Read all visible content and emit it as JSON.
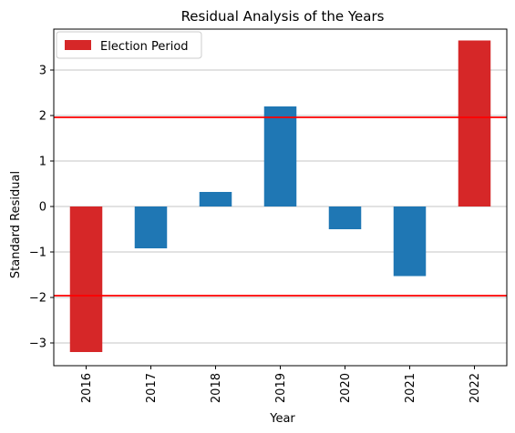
{
  "chart_data": {
    "type": "bar",
    "title": "Residual Analysis of the Years",
    "xlabel": "Year",
    "ylabel": "Standard Residual",
    "categories": [
      "2016",
      "2017",
      "2018",
      "2019",
      "2020",
      "2021",
      "2022"
    ],
    "values": [
      -3.2,
      -0.92,
      0.32,
      2.2,
      -0.5,
      -1.53,
      3.65
    ],
    "election_period": [
      true,
      false,
      false,
      false,
      false,
      false,
      true
    ],
    "ylim": [
      -3.5,
      3.9
    ],
    "yticks": [
      -3,
      -2,
      -1,
      0,
      1,
      2,
      3
    ],
    "threshold_lines": [
      1.96,
      -1.96
    ],
    "grid": "y-only",
    "legend": {
      "placement": "top-left",
      "entries": [
        {
          "label": "Election Period",
          "color": "#d62728"
        }
      ]
    },
    "colors": {
      "default_bar": "#1f77b4",
      "election_bar": "#d62728",
      "threshold_line": "#ff0000",
      "grid": "#b0b0b0"
    }
  }
}
